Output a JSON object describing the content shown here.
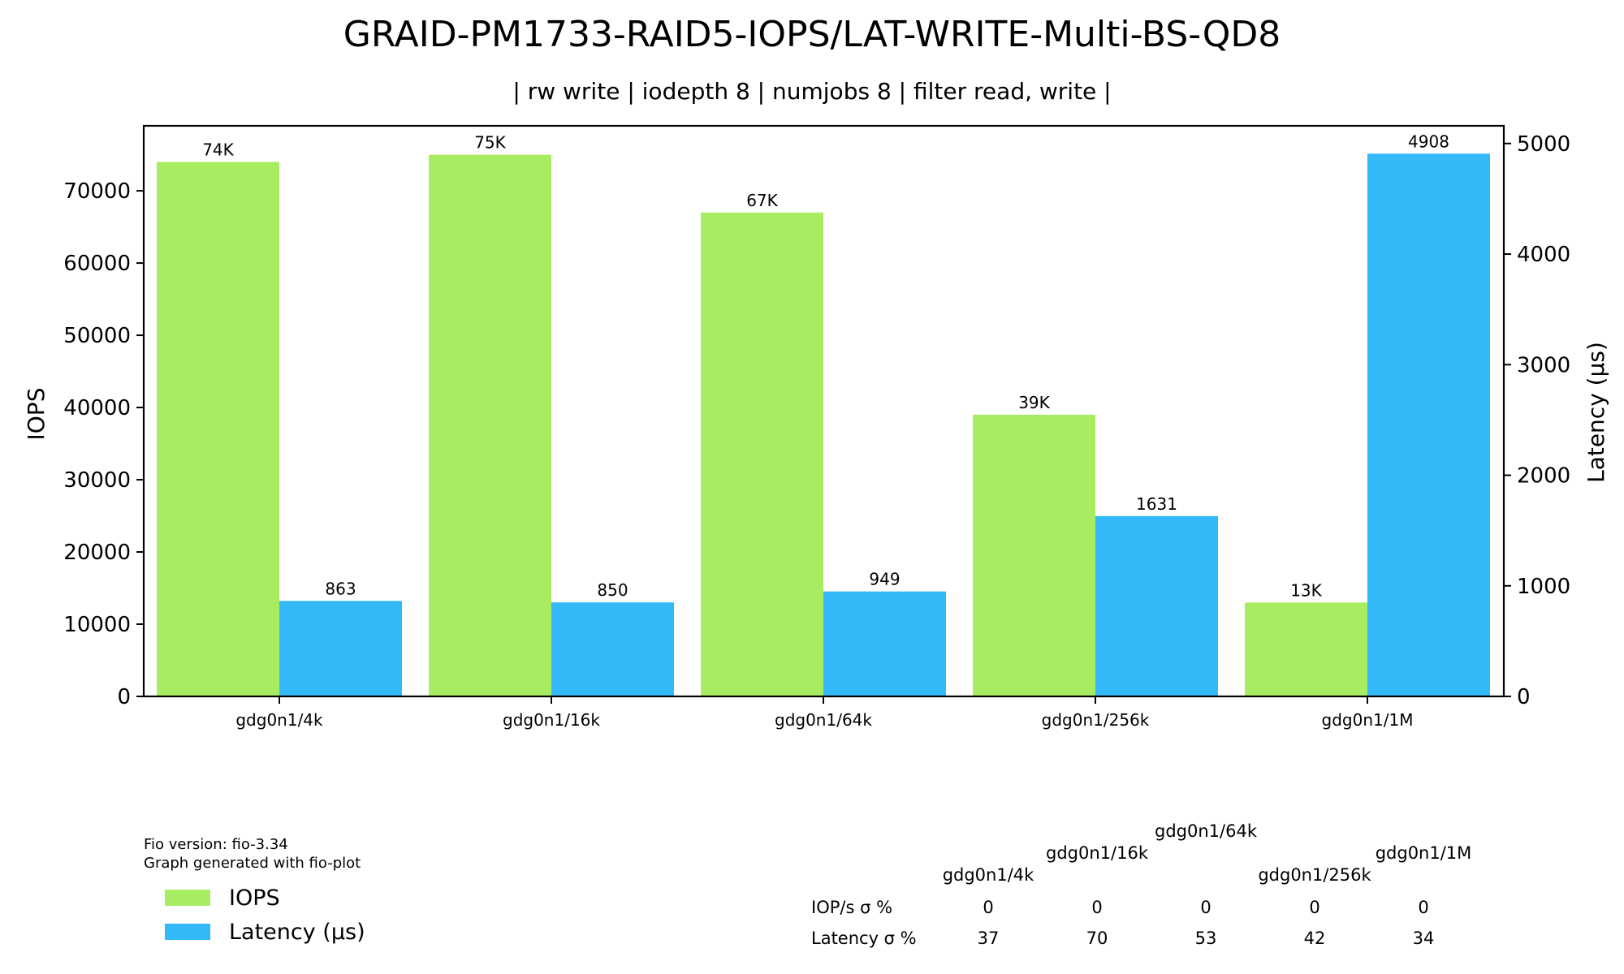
{
  "title": "GRAID-PM1733-RAID5-IOPS/LAT-WRITE-Multi-BS-QD8",
  "subtitle": "| rw write | iodepth 8 | numjobs 8 | filter read, write |",
  "colors": {
    "iops": "#a8ec62",
    "latency": "#33b8f8"
  },
  "chart_data": {
    "type": "bar",
    "categories": [
      "gdg0n1/4k",
      "gdg0n1/16k",
      "gdg0n1/64k",
      "gdg0n1/256k",
      "gdg0n1/1M"
    ],
    "series": [
      {
        "name": "IOPS",
        "axis": "left",
        "values": [
          74000,
          75000,
          67000,
          39000,
          13000
        ],
        "labels": [
          "74K",
          "75K",
          "67K",
          "39K",
          "13K"
        ]
      },
      {
        "name": "Latency (µs)",
        "axis": "right",
        "values": [
          863,
          850,
          949,
          1631,
          4908
        ],
        "labels": [
          "863",
          "850",
          "949",
          "1631",
          "4908"
        ]
      }
    ],
    "ylabel": "IOPS",
    "y2label": "Latency (µs)",
    "ylim": [
      0,
      79000
    ],
    "y2lim": [
      0,
      5160
    ],
    "yticks": [
      0,
      10000,
      20000,
      30000,
      40000,
      50000,
      60000,
      70000
    ],
    "y2ticks": [
      0,
      1000,
      2000,
      3000,
      4000,
      5000
    ],
    "legend": [
      "IOPS",
      "Latency (µs)"
    ],
    "legend_position": "bottom-left"
  },
  "footer": {
    "fio_version": "Fio version: fio-3.34",
    "generated_with": "Graph generated with fio-plot"
  },
  "stddev_table": {
    "columns": [
      "gdg0n1/4k",
      "gdg0n1/16k",
      "gdg0n1/64k",
      "gdg0n1/256k",
      "gdg0n1/1M"
    ],
    "rows": [
      {
        "label": "IOP/s σ %",
        "values": [
          "0",
          "0",
          "0",
          "0",
          "0"
        ]
      },
      {
        "label": "Latency σ %",
        "values": [
          "37",
          "70",
          "53",
          "42",
          "34"
        ]
      }
    ]
  }
}
